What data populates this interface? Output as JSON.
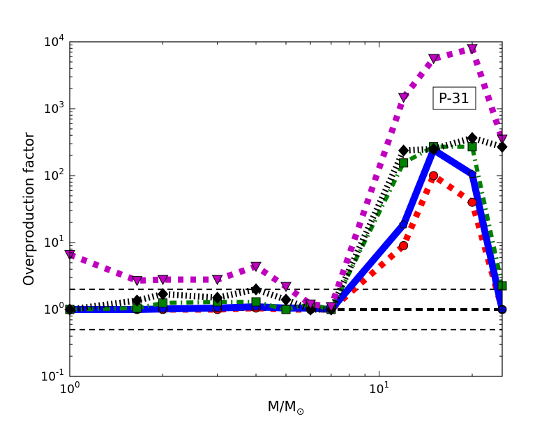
{
  "chart_data": {
    "type": "line",
    "title": "",
    "annotation": "P-31",
    "xlabel": "M/M",
    "xlabel_subscript": "⊙",
    "ylabel": "Overproduction factor",
    "xscale": "log",
    "yscale": "log",
    "xlim": [
      1,
      25
    ],
    "ylim": [
      0.1,
      10000
    ],
    "x_tick_labels": [
      {
        "value": 1,
        "base": "10",
        "exp": "0"
      },
      {
        "value": 10,
        "base": "10",
        "exp": "1"
      }
    ],
    "y_tick_labels": [
      {
        "value": 0.1,
        "base": "10",
        "exp": "-1"
      },
      {
        "value": 1,
        "base": "10",
        "exp": "0"
      },
      {
        "value": 10,
        "base": "10",
        "exp": "1"
      },
      {
        "value": 100,
        "base": "10",
        "exp": "2"
      },
      {
        "value": 1000,
        "base": "10",
        "exp": "3"
      },
      {
        "value": 10000,
        "base": "10",
        "exp": "4"
      }
    ],
    "reference_lines": [
      2,
      1,
      0.5
    ],
    "x": [
      1,
      1.65,
      2,
      3,
      4,
      5,
      6,
      7,
      12,
      15,
      20,
      25
    ],
    "series": [
      {
        "name": "red",
        "color": "#ff0000",
        "marker": "circle",
        "style": "dotted",
        "values": [
          1.0,
          1.0,
          1.0,
          1.0,
          1.05,
          1.0,
          1.0,
          1.0,
          9,
          100,
          40,
          1.0
        ]
      },
      {
        "name": "blue",
        "color": "#0000ff",
        "marker": "pentagon",
        "style": "solid",
        "values": [
          1.0,
          1.0,
          1.02,
          1.05,
          1.1,
          1.05,
          1.05,
          1.0,
          18.6,
          243,
          105,
          1.0
        ]
      },
      {
        "name": "green",
        "color": "#008000",
        "marker": "square",
        "style": "dashdot",
        "values": [
          1.0,
          1.05,
          1.25,
          1.3,
          1.3,
          1.0,
          1.2,
          1.0,
          155,
          270,
          270,
          2.26
        ]
      },
      {
        "name": "black",
        "color": "#000000",
        "marker": "diamond",
        "style": "hatch",
        "values": [
          1.0,
          1.36,
          1.7,
          1.5,
          2.0,
          1.4,
          1.0,
          1.0,
          237,
          250,
          365,
          270
        ]
      },
      {
        "name": "magenta",
        "color": "#bf00bf",
        "marker": "triangle-down",
        "style": "dotted",
        "values": [
          6.6,
          2.7,
          2.8,
          2.8,
          4.4,
          2.2,
          1.2,
          1.1,
          1470,
          5600,
          7900,
          350
        ]
      }
    ]
  }
}
